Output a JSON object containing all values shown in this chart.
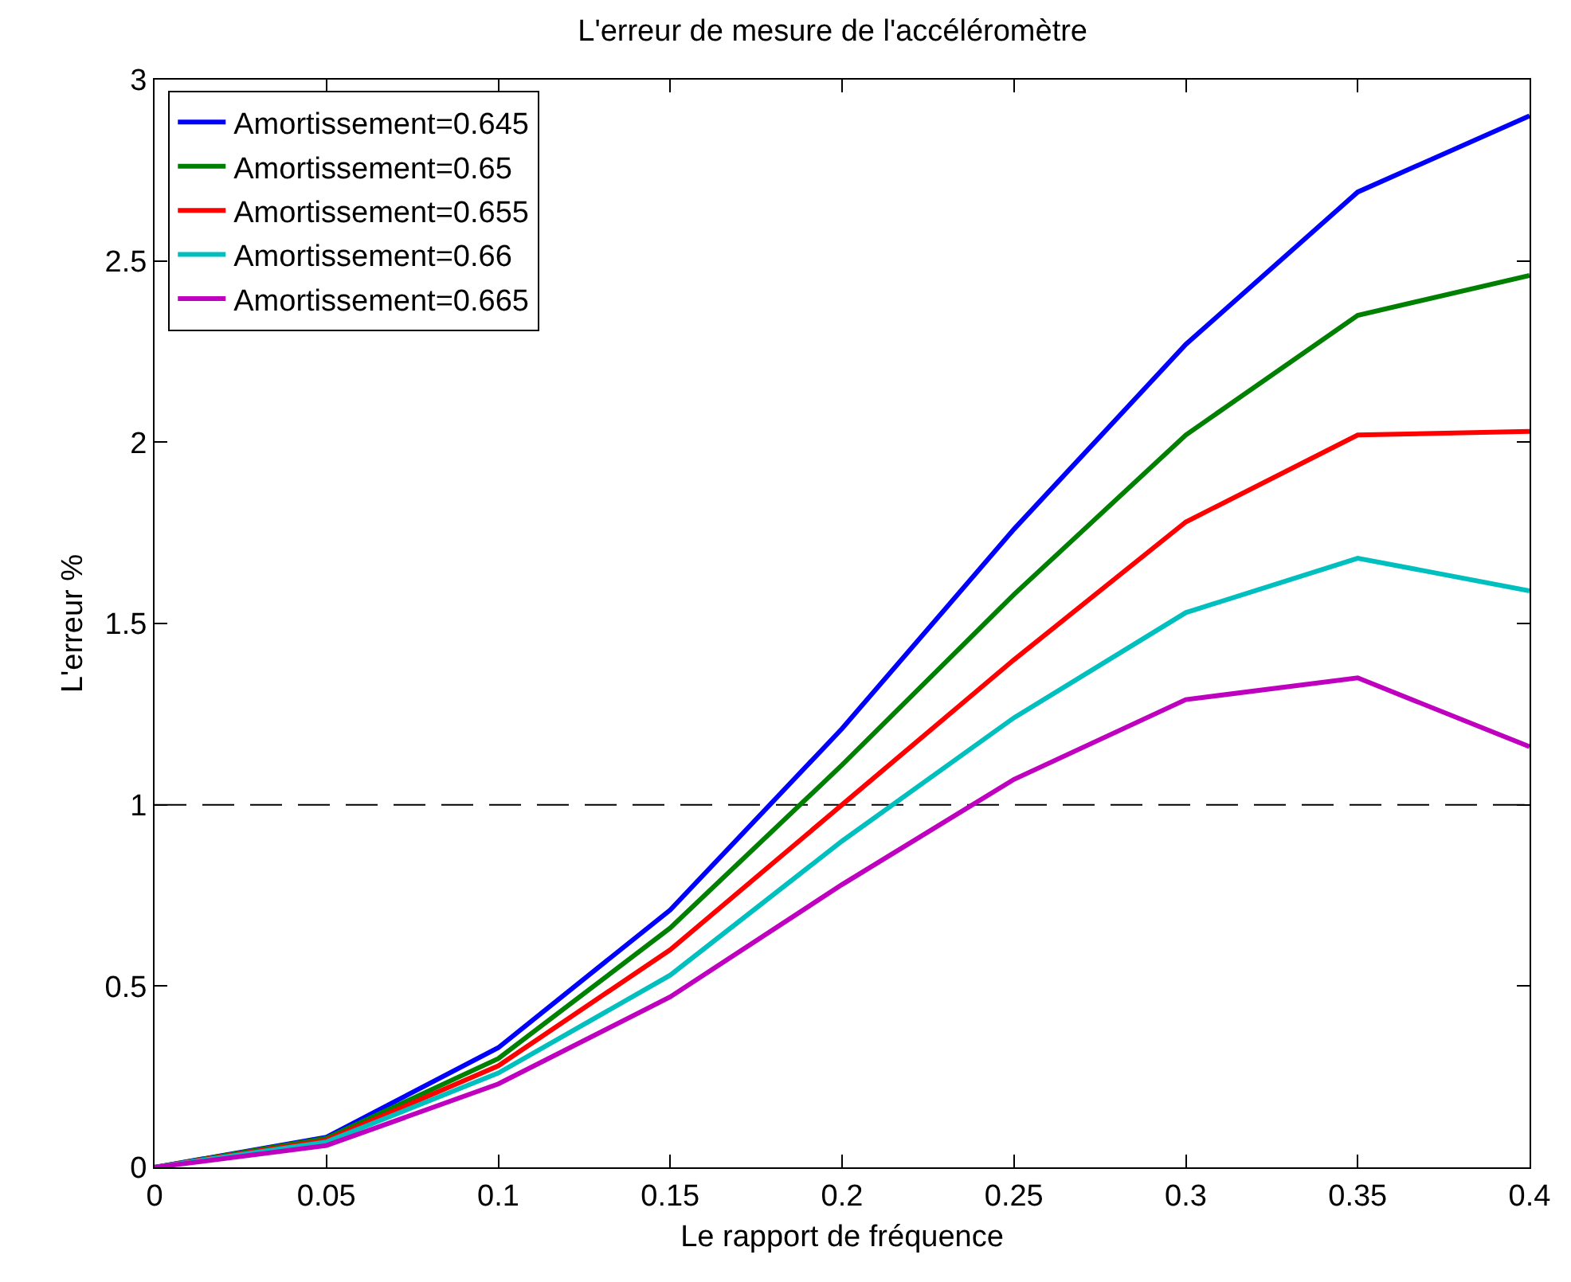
{
  "chart_data": {
    "type": "line",
    "title": "L'erreur de mesure de l'accéléromètre",
    "xlabel": "Le rapport de fréquence",
    "ylabel": "L'erreur %",
    "x": [
      0,
      0.05,
      0.1,
      0.15,
      0.2,
      0.25,
      0.3,
      0.35,
      0.4
    ],
    "series": [
      {
        "name": "Amortissement=0.645",
        "color": "#0000ff",
        "values": [
          0,
          0.083,
          0.33,
          0.71,
          1.21,
          1.76,
          2.27,
          2.69,
          2.9
        ]
      },
      {
        "name": "Amortissement=0.65",
        "color": "#008000",
        "values": [
          0,
          0.08,
          0.3,
          0.66,
          1.11,
          1.58,
          2.02,
          2.35,
          2.46
        ]
      },
      {
        "name": "Amortissement=0.655",
        "color": "#ff0000",
        "values": [
          0,
          0.075,
          0.28,
          0.6,
          1.0,
          1.4,
          1.78,
          2.02,
          2.03
        ]
      },
      {
        "name": "Amortissement=0.66",
        "color": "#00bfbf",
        "values": [
          0,
          0.07,
          0.26,
          0.53,
          0.9,
          1.24,
          1.53,
          1.68,
          1.59
        ]
      },
      {
        "name": "Amortissement=0.665",
        "color": "#bf00bf",
        "values": [
          0,
          0.06,
          0.23,
          0.47,
          0.78,
          1.07,
          1.29,
          1.35,
          1.16
        ]
      }
    ],
    "xlim": [
      0,
      0.4
    ],
    "xticks": [
      0,
      0.05,
      0.1,
      0.15,
      0.2,
      0.25,
      0.3,
      0.35,
      0.4
    ],
    "ylim": [
      0,
      3
    ],
    "yticks": [
      0,
      0.5,
      1,
      1.5,
      2,
      2.5,
      3
    ],
    "ref_lines": [
      {
        "axis": "y",
        "value": 1,
        "color": "#000000",
        "line_style": "dashed"
      }
    ],
    "grid": false,
    "legend": "top left",
    "line_style": "solid"
  }
}
